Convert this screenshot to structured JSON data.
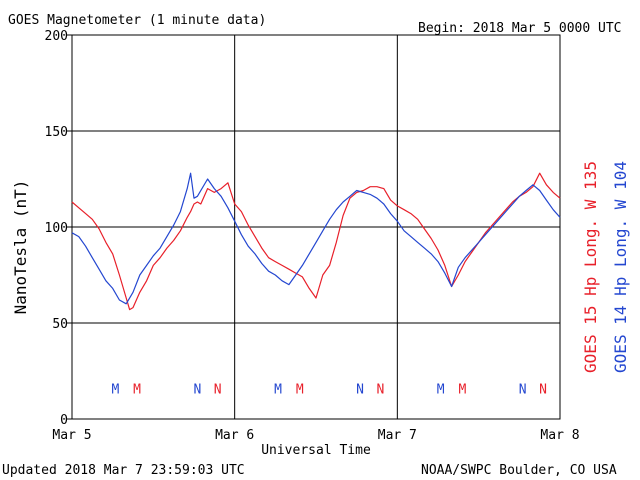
{
  "header": {
    "title": "GOES Magnetometer (1 minute data)",
    "begin": "Begin:  2018 Mar 5 0000 UTC"
  },
  "footer": {
    "updated": "Updated 2018 Mar  7 23:59:03 UTC",
    "credit": "NOAA/SWPC Boulder, CO USA"
  },
  "chart_data": {
    "type": "line",
    "title": "GOES Magnetometer (1 minute data)",
    "xlabel": "Universal Time",
    "ylabel": "NanoTesla (nT)",
    "ylim": [
      0,
      200
    ],
    "xlim": [
      0,
      72
    ],
    "x_unit": "hours since 2018 Mar 5 0000 UTC",
    "x_ticks": [
      {
        "x": 0,
        "label": "Mar 5"
      },
      {
        "x": 24,
        "label": "Mar 6"
      },
      {
        "x": 48,
        "label": "Mar 7"
      },
      {
        "x": 72,
        "label": "Mar 8"
      }
    ],
    "y_ticks": [
      0,
      50,
      100,
      150,
      200
    ],
    "grid": true,
    "series": [
      {
        "name": "GOES 15 Hp  Long. W 135",
        "color": "#e8202a",
        "points": [
          [
            0,
            113
          ],
          [
            1,
            110
          ],
          [
            2,
            107
          ],
          [
            3,
            104
          ],
          [
            4,
            99
          ],
          [
            5,
            92
          ],
          [
            6,
            86
          ],
          [
            7,
            75
          ],
          [
            8,
            63
          ],
          [
            8.5,
            57
          ],
          [
            9,
            58
          ],
          [
            10,
            66
          ],
          [
            11,
            72
          ],
          [
            12,
            80
          ],
          [
            13,
            84
          ],
          [
            14,
            89
          ],
          [
            15,
            93
          ],
          [
            16,
            98
          ],
          [
            17,
            105
          ],
          [
            17.5,
            108
          ],
          [
            18,
            112
          ],
          [
            18.5,
            113
          ],
          [
            19,
            112
          ],
          [
            20,
            120
          ],
          [
            21,
            118
          ],
          [
            22,
            120
          ],
          [
            23,
            123
          ],
          [
            24,
            112
          ],
          [
            25,
            108
          ],
          [
            26,
            101
          ],
          [
            27,
            95
          ],
          [
            28,
            89
          ],
          [
            29,
            84
          ],
          [
            30,
            82
          ],
          [
            31,
            80
          ],
          [
            32,
            78
          ],
          [
            33,
            76
          ],
          [
            34,
            74
          ],
          [
            35,
            68
          ],
          [
            36,
            63
          ],
          [
            37,
            75
          ],
          [
            38,
            80
          ],
          [
            39,
            92
          ],
          [
            40,
            106
          ],
          [
            41,
            115
          ],
          [
            42,
            118
          ],
          [
            43,
            119
          ],
          [
            44,
            121
          ],
          [
            45,
            121
          ],
          [
            46,
            120
          ],
          [
            47,
            114
          ],
          [
            48,
            111
          ],
          [
            49,
            109
          ],
          [
            50,
            107
          ],
          [
            51,
            104
          ],
          [
            52,
            99
          ],
          [
            53,
            94
          ],
          [
            54,
            88
          ],
          [
            55,
            80
          ],
          [
            56,
            69
          ],
          [
            57,
            75
          ],
          [
            58,
            82
          ],
          [
            59,
            87
          ],
          [
            60,
            92
          ],
          [
            61,
            97
          ],
          [
            62,
            101
          ],
          [
            63,
            105
          ],
          [
            64,
            109
          ],
          [
            65,
            113
          ],
          [
            66,
            116
          ],
          [
            67,
            118
          ],
          [
            68,
            121
          ],
          [
            69,
            128
          ],
          [
            70,
            122
          ],
          [
            71,
            118
          ],
          [
            72,
            115
          ]
        ]
      },
      {
        "name": "GOES 14 Hp  Long. W 104",
        "color": "#2447d0",
        "points": [
          [
            0,
            97
          ],
          [
            1,
            95
          ],
          [
            2,
            90
          ],
          [
            3,
            84
          ],
          [
            4,
            78
          ],
          [
            5,
            72
          ],
          [
            6,
            68
          ],
          [
            7,
            62
          ],
          [
            8,
            60
          ],
          [
            9,
            66
          ],
          [
            10,
            75
          ],
          [
            11,
            80
          ],
          [
            12,
            85
          ],
          [
            13,
            89
          ],
          [
            14,
            95
          ],
          [
            15,
            101
          ],
          [
            16,
            108
          ],
          [
            17,
            120
          ],
          [
            17.5,
            128
          ],
          [
            18,
            115
          ],
          [
            18.5,
            116
          ],
          [
            20,
            125
          ],
          [
            21,
            120
          ],
          [
            22,
            116
          ],
          [
            23,
            110
          ],
          [
            24,
            103
          ],
          [
            25,
            96
          ],
          [
            26,
            90
          ],
          [
            27,
            86
          ],
          [
            28,
            81
          ],
          [
            29,
            77
          ],
          [
            30,
            75
          ],
          [
            31,
            72
          ],
          [
            32,
            70
          ],
          [
            33,
            75
          ],
          [
            34,
            80
          ],
          [
            35,
            86
          ],
          [
            36,
            92
          ],
          [
            37,
            98
          ],
          [
            38,
            104
          ],
          [
            39,
            109
          ],
          [
            40,
            113
          ],
          [
            41,
            116
          ],
          [
            42,
            119
          ],
          [
            43,
            118
          ],
          [
            44,
            117
          ],
          [
            45,
            115
          ],
          [
            46,
            112
          ],
          [
            47,
            107
          ],
          [
            48,
            103
          ],
          [
            49,
            98
          ],
          [
            50,
            95
          ],
          [
            51,
            92
          ],
          [
            52,
            89
          ],
          [
            53,
            86
          ],
          [
            54,
            82
          ],
          [
            55,
            76
          ],
          [
            56,
            69
          ],
          [
            57,
            79
          ],
          [
            58,
            84
          ],
          [
            59,
            88
          ],
          [
            60,
            92
          ],
          [
            61,
            96
          ],
          [
            62,
            100
          ],
          [
            63,
            104
          ],
          [
            64,
            108
          ],
          [
            65,
            112
          ],
          [
            66,
            116
          ],
          [
            67,
            119
          ],
          [
            68,
            122
          ],
          [
            69,
            119
          ],
          [
            70,
            114
          ],
          [
            71,
            109
          ],
          [
            72,
            105
          ]
        ]
      }
    ],
    "markers": [
      {
        "label": "M",
        "x": 6.4,
        "color": "#2447d0"
      },
      {
        "label": "M",
        "x": 9.6,
        "color": "#e8202a"
      },
      {
        "label": "N",
        "x": 18.5,
        "color": "#2447d0"
      },
      {
        "label": "N",
        "x": 21.5,
        "color": "#e8202a"
      },
      {
        "label": "M",
        "x": 30.4,
        "color": "#2447d0"
      },
      {
        "label": "M",
        "x": 33.6,
        "color": "#e8202a"
      },
      {
        "label": "N",
        "x": 42.5,
        "color": "#2447d0"
      },
      {
        "label": "N",
        "x": 45.5,
        "color": "#e8202a"
      },
      {
        "label": "M",
        "x": 54.4,
        "color": "#2447d0"
      },
      {
        "label": "M",
        "x": 57.6,
        "color": "#e8202a"
      },
      {
        "label": "N",
        "x": 66.5,
        "color": "#2447d0"
      },
      {
        "label": "N",
        "x": 69.5,
        "color": "#e8202a"
      }
    ],
    "marker_y": 16
  }
}
